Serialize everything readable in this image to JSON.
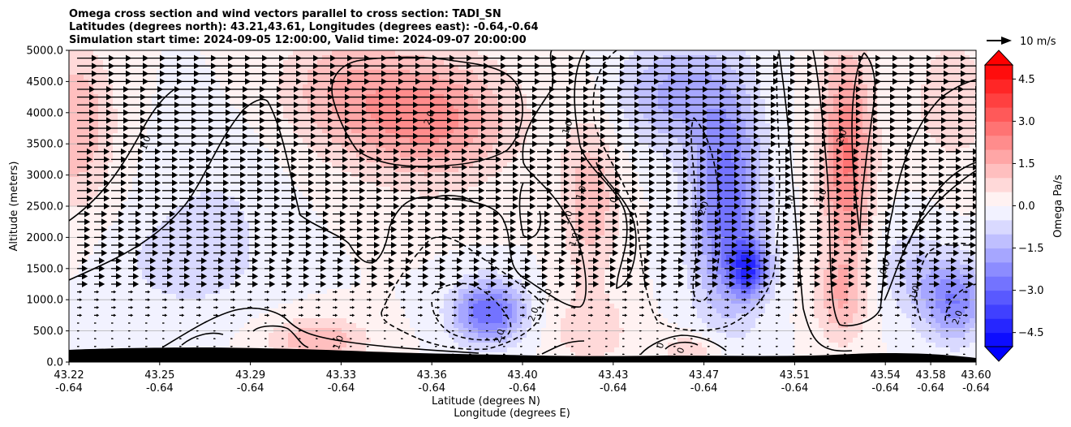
{
  "chart_data": {
    "type": "heatmap",
    "title_lines": [
      "Omega cross section and wind vectors parallel to cross section: TADI_SN",
      "Latitudes (degrees north): 43.21,43.61, Longitudes (degrees east): -0.64,-0.64",
      "Simulation start time: 2024-09-05 12:00:00, Valid time: 2024-09-07 20:00:00"
    ],
    "ylabel": "Altitude (meters)",
    "xlabel_lines": [
      "Latitude (degrees N)",
      "Longitude (degrees E)"
    ],
    "colorbar_label": "Omega Pa/s",
    "colorbar_ticks": [
      "4.5",
      "3.0",
      "1.5",
      "0.0",
      "−1.5",
      "−3.0",
      "−4.5"
    ],
    "colorbar_tick_values": [
      4.5,
      3.0,
      1.5,
      0.0,
      -1.5,
      -3.0,
      -4.5
    ],
    "color_range": [
      -5.0,
      5.0
    ],
    "color_levels": 20,
    "colors": {
      "positive": "#ff0000",
      "negative": "#0000ff",
      "neutral": "#ffffff",
      "terrain": "#000000",
      "grid": "#b0b0b0"
    },
    "quiver_key_label": "10 m/s",
    "ylim": [
      0,
      5000
    ],
    "yticks": [
      "0.0",
      "500.0",
      "1000.0",
      "1500.0",
      "2000.0",
      "2500.0",
      "3000.0",
      "3500.0",
      "4000.0",
      "4500.0",
      "5000.0"
    ],
    "ytick_values": [
      0,
      500,
      1000,
      1500,
      2000,
      2500,
      3000,
      3500,
      4000,
      4500,
      5000
    ],
    "xlim": [
      43.21,
      43.61
    ],
    "xticks": [
      {
        "lat": "43.22",
        "lon": "-0.64",
        "value": 43.21
      },
      {
        "lat": "43.25",
        "lon": "-0.64",
        "value": 43.25
      },
      {
        "lat": "43.29",
        "lon": "-0.64",
        "value": 43.29
      },
      {
        "lat": "43.33",
        "lon": "-0.64",
        "value": 43.33
      },
      {
        "lat": "43.36",
        "lon": "-0.64",
        "value": 43.37
      },
      {
        "lat": "43.40",
        "lon": "-0.64",
        "value": 43.41
      },
      {
        "lat": "43.43",
        "lon": "-0.64",
        "value": 43.45
      },
      {
        "lat": "43.47",
        "lon": "-0.64",
        "value": 43.49
      },
      {
        "lat": "43.51",
        "lon": "-0.64",
        "value": 43.53
      },
      {
        "lat": "43.54",
        "lon": "-0.64",
        "value": 43.57
      },
      {
        "lat": "43.58",
        "lon": "-0.64",
        "value": 43.59
      },
      {
        "lat": "43.60",
        "lon": "-0.64",
        "value": 43.61
      }
    ],
    "omega_field_centers": [
      {
        "x": 43.213,
        "z": 3800,
        "value": 1.5,
        "sx": 0.012,
        "sz": 900
      },
      {
        "x": 43.33,
        "z": 4400,
        "value": 1.2,
        "sx": 0.02,
        "sz": 700
      },
      {
        "x": 43.37,
        "z": 3900,
        "value": 2.2,
        "sx": 0.025,
        "sz": 700
      },
      {
        "x": 43.275,
        "z": 2400,
        "value": -0.5,
        "sx": 0.02,
        "sz": 900
      },
      {
        "x": 43.26,
        "z": 1600,
        "value": -0.7,
        "sx": 0.02,
        "sz": 500
      },
      {
        "x": 43.395,
        "z": 800,
        "value": -3.0,
        "sx": 0.011,
        "sz": 350
      },
      {
        "x": 43.32,
        "z": 350,
        "value": 1.5,
        "sx": 0.015,
        "sz": 250
      },
      {
        "x": 43.44,
        "z": 2600,
        "value": 1.4,
        "sx": 0.009,
        "sz": 900
      },
      {
        "x": 43.44,
        "z": 500,
        "value": 0.9,
        "sx": 0.012,
        "sz": 400
      },
      {
        "x": 43.5,
        "z": 2600,
        "value": -2.8,
        "sx": 0.011,
        "sz": 1300
      },
      {
        "x": 43.475,
        "z": 4300,
        "value": -1.6,
        "sx": 0.016,
        "sz": 600
      },
      {
        "x": 43.51,
        "z": 1500,
        "value": -3.2,
        "sx": 0.006,
        "sz": 300
      },
      {
        "x": 43.485,
        "z": 200,
        "value": 1.0,
        "sx": 0.01,
        "sz": 200
      },
      {
        "x": 43.553,
        "z": 3300,
        "value": 2.6,
        "sx": 0.008,
        "sz": 1200
      },
      {
        "x": 43.55,
        "z": 1000,
        "value": 1.2,
        "sx": 0.008,
        "sz": 500
      },
      {
        "x": 43.6,
        "z": 1000,
        "value": -2.5,
        "sx": 0.01,
        "sz": 450
      },
      {
        "x": 43.58,
        "z": 1500,
        "value": -0.9,
        "sx": 0.01,
        "sz": 500
      },
      {
        "x": 43.6,
        "z": 4200,
        "value": 1.0,
        "sx": 0.012,
        "sz": 700
      }
    ],
    "contour_labels": [
      {
        "text": "1.0",
        "x": 43.245,
        "z": 3500
      },
      {
        "text": "2.0",
        "x": 43.37,
        "z": 3900
      },
      {
        "text": "1.0",
        "x": 43.431,
        "z": 3750
      },
      {
        "text": "1.0",
        "x": 43.437,
        "z": 2700
      },
      {
        "text": "1.0",
        "x": 43.431,
        "z": 2300
      },
      {
        "text": "1.0",
        "x": 43.434,
        "z": 1950
      },
      {
        "text": "0.0",
        "x": 43.452,
        "z": 2650
      },
      {
        "text": "2.0",
        "x": 43.491,
        "z": 2450
      },
      {
        "text": "0.0",
        "x": 43.529,
        "z": 2550
      },
      {
        "text": "1.0",
        "x": 43.543,
        "z": 2650
      },
      {
        "text": "2.0",
        "x": 43.552,
        "z": 3600
      },
      {
        "text": "0.0",
        "x": 43.571,
        "z": 1500
      },
      {
        "text": "1.0",
        "x": 43.584,
        "z": 1100
      },
      {
        "text": "2.0",
        "x": 43.603,
        "z": 700
      },
      {
        "text": "1.0",
        "x": 43.422,
        "z": 1050
      },
      {
        "text": "2.0",
        "x": 43.416,
        "z": 750
      },
      {
        "text": "2.0",
        "x": 43.401,
        "z": 400
      },
      {
        "text": "1.0",
        "x": 43.33,
        "z": 300
      },
      {
        "text": "0",
        "x": 43.472,
        "z": 250
      },
      {
        "text": "0",
        "x": 43.481,
        "z": 170
      }
    ]
  }
}
